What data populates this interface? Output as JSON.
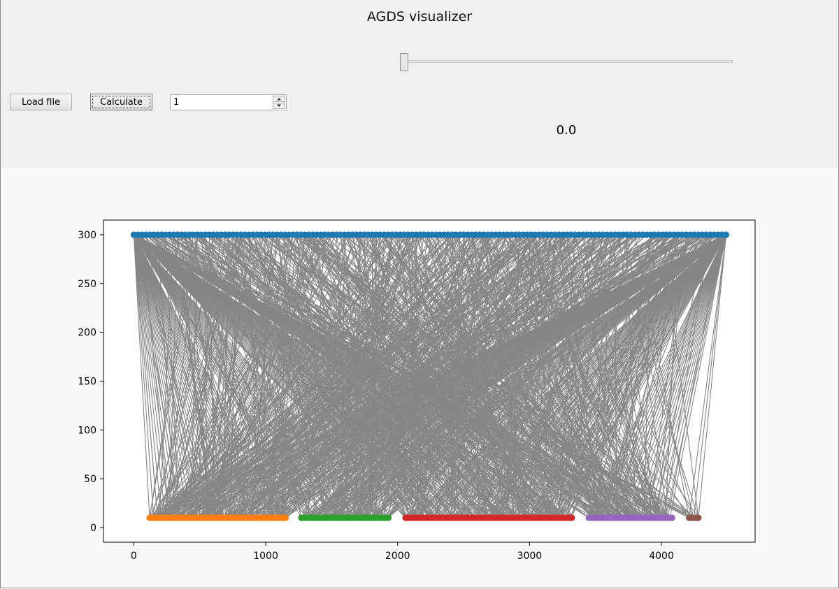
{
  "window": {
    "title": "AGDS visualizer"
  },
  "controls": {
    "load_label": "Load file",
    "calculate_label": "Calculate",
    "spin_value": "1",
    "slider_fraction": 0.0,
    "slider_value_text": "0.0"
  },
  "colors": {
    "edges": "#808080",
    "top_nodes": "#1f77b4",
    "group1": "#ff7f0e",
    "group2": "#2ca02c",
    "group3": "#d62728",
    "group4": "#9467bd",
    "group5": "#8c564b"
  },
  "icons": {
    "spin_up": "triangle-up-icon",
    "spin_down": "triangle-down-icon"
  },
  "chart_data": {
    "type": "scatter",
    "title": "",
    "xlabel": "",
    "ylabel": "",
    "xlim": [
      -230,
      4710
    ],
    "ylim": [
      -15,
      315
    ],
    "xticks": [
      0,
      1000,
      2000,
      3000,
      4000
    ],
    "yticks": [
      0,
      50,
      100,
      150,
      200,
      250,
      300
    ],
    "grid": false,
    "legend": "none",
    "series": [
      {
        "role": "top",
        "y": 300,
        "x_start": 0,
        "x_end": 4490,
        "count": 150,
        "color": "#1f77b4"
      },
      {
        "role": "group1",
        "y": 10,
        "x_start": 120,
        "x_end": 1150,
        "count": 70,
        "color": "#ff7f0e"
      },
      {
        "role": "group2",
        "y": 10,
        "x_start": 1270,
        "x_end": 1930,
        "count": 40,
        "color": "#2ca02c"
      },
      {
        "role": "group3",
        "y": 10,
        "x_start": 2060,
        "x_end": 3320,
        "count": 80,
        "color": "#d62728"
      },
      {
        "role": "group4",
        "y": 10,
        "x_start": 3450,
        "x_end": 4080,
        "count": 40,
        "color": "#9467bd"
      },
      {
        "role": "group5",
        "y": 10,
        "x_start": 4210,
        "x_end": 4280,
        "count": 5,
        "color": "#8c564b"
      }
    ],
    "edges": {
      "from_y": 300,
      "to_y": 10,
      "approx_count": 900,
      "color": "#808080"
    }
  }
}
